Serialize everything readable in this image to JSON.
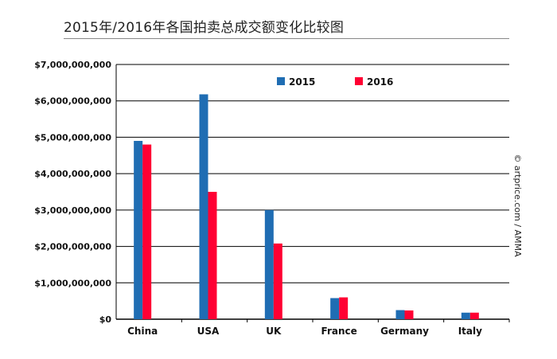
{
  "colors": {
    "s2015": "#1f6db3",
    "s2016": "#ff0033",
    "grid": "#000000"
  },
  "credit": "© artprice.com / AMMA",
  "chart_data": {
    "type": "bar",
    "title": "2015年/2016年各国拍卖总成交额变化比较图",
    "xlabel": "",
    "ylabel": "",
    "categories": [
      "China",
      "USA",
      "UK",
      "France",
      "Germany",
      "Italy"
    ],
    "series": [
      {
        "name": "2015",
        "values": [
          4900000000,
          6180000000,
          3000000000,
          580000000,
          250000000,
          180000000
        ]
      },
      {
        "name": "2016",
        "values": [
          4800000000,
          3500000000,
          2080000000,
          600000000,
          240000000,
          180000000
        ]
      }
    ],
    "ylim": [
      0,
      7000000000
    ],
    "yticks": [
      {
        "value": 0,
        "label": "$0"
      },
      {
        "value": 1000000000,
        "label": "$1,000,000,000"
      },
      {
        "value": 2000000000,
        "label": "$2,000,000,000"
      },
      {
        "value": 3000000000,
        "label": "$3,000,000,000"
      },
      {
        "value": 4000000000,
        "label": "$4,000,000,000"
      },
      {
        "value": 5000000000,
        "label": "$5,000,000,000"
      },
      {
        "value": 6000000000,
        "label": "$6,000,000,000"
      },
      {
        "value": 7000000000,
        "label": "$7,000,000,000"
      }
    ],
    "grid": true,
    "legend": "top-center"
  }
}
